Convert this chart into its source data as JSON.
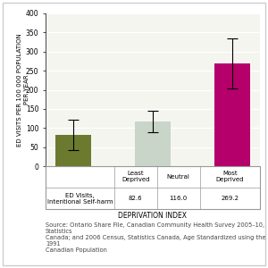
{
  "categories": [
    "Least\nDeprived",
    "Neutral",
    "Most\nDeprived"
  ],
  "values": [
    82.6,
    116.0,
    269.2
  ],
  "error_low": [
    40,
    28,
    65
  ],
  "error_high": [
    40,
    28,
    65
  ],
  "bar_colors": [
    "#6b7a2e",
    "#c8d5c8",
    "#b5006b"
  ],
  "ylabel": "ED VISITS PER 100 000 POPULATION\nPER YEAR",
  "xlabel": "DEPRIVATION INDEX",
  "ylim": [
    0,
    400
  ],
  "yticks": [
    0,
    50,
    100,
    150,
    200,
    250,
    300,
    350,
    400
  ],
  "table_row_label": "ED Visits,\nIntentional Self-harm",
  "table_values": [
    "82.6",
    "116.0",
    "269.2"
  ],
  "source_text": "Source: Ontario Share File, Canadian Community Health Survey 2005–10, Statistics\nCanada; and 2006 Census, Statistics Canada, Age Standardized using the 1991\nCanadian Population",
  "ylabel_fontsize": 5.0,
  "axis_label_fontsize": 5.5,
  "tick_fontsize": 5.5,
  "table_fontsize": 5.0,
  "source_fontsize": 4.8,
  "bar_width": 0.45,
  "bg_color": "#f5f5f0",
  "grid_color": "#ffffff"
}
